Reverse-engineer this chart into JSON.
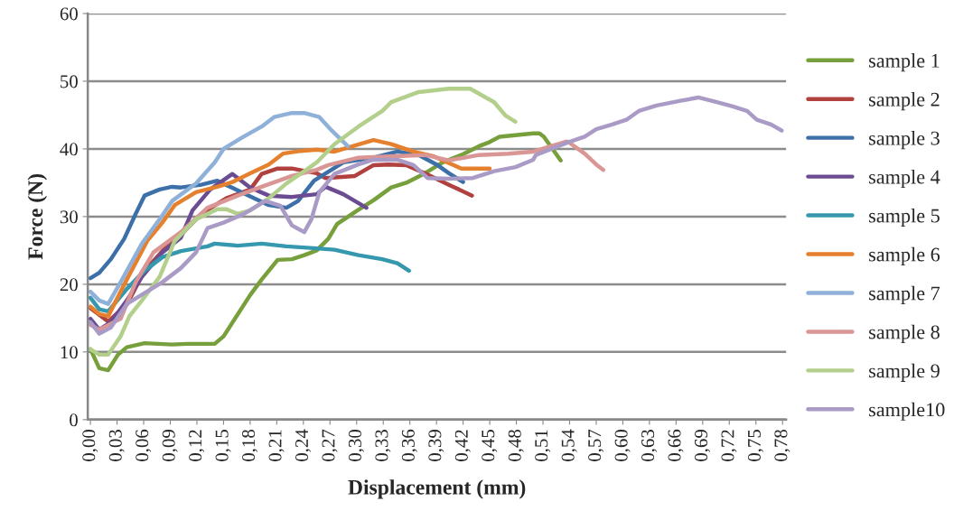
{
  "chart_data": {
    "type": "line",
    "xlabel": "Displacement (mm)",
    "ylabel": "Force (N)",
    "xlim": [
      -0.003,
      0.784
    ],
    "ylim": [
      0,
      60
    ],
    "yticks": [
      0,
      10,
      20,
      30,
      40,
      50,
      60
    ],
    "xticks": [
      {
        "value": 0,
        "label": "0,00"
      },
      {
        "value": 0.03,
        "label": "0,03"
      },
      {
        "value": 0.06,
        "label": "0,06"
      },
      {
        "value": 0.09,
        "label": "0,09"
      },
      {
        "value": 0.12,
        "label": "0,12"
      },
      {
        "value": 0.15,
        "label": "0,15"
      },
      {
        "value": 0.18,
        "label": "0,18"
      },
      {
        "value": 0.21,
        "label": "0,21"
      },
      {
        "value": 0.24,
        "label": "0,24"
      },
      {
        "value": 0.27,
        "label": "0,27"
      },
      {
        "value": 0.3,
        "label": "0,30"
      },
      {
        "value": 0.33,
        "label": "0,33"
      },
      {
        "value": 0.36,
        "label": "0,36"
      },
      {
        "value": 0.39,
        "label": "0,39"
      },
      {
        "value": 0.42,
        "label": "0,42"
      },
      {
        "value": 0.45,
        "label": "0,45"
      },
      {
        "value": 0.48,
        "label": "0,48"
      },
      {
        "value": 0.51,
        "label": "0,51"
      },
      {
        "value": 0.54,
        "label": "0,54"
      },
      {
        "value": 0.57,
        "label": "0,57"
      },
      {
        "value": 0.6,
        "label": "0,60"
      },
      {
        "value": 0.63,
        "label": "0,63"
      },
      {
        "value": 0.66,
        "label": "0,66"
      },
      {
        "value": 0.69,
        "label": "0,69"
      },
      {
        "value": 0.72,
        "label": "0,72"
      },
      {
        "value": 0.75,
        "label": "0,75"
      },
      {
        "value": 0.78,
        "label": "0,78"
      }
    ],
    "grid": "y",
    "legend": "right",
    "marker": "none",
    "line_style": "solid",
    "series": [
      {
        "name": "sample 1",
        "color": "#77a03c",
        "x": [
          0,
          0.01,
          0.02,
          0.031,
          0.041,
          0.061,
          0.092,
          0.109,
          0.14,
          0.15,
          0.18,
          0.193,
          0.211,
          0.227,
          0.241,
          0.255,
          0.268,
          0.278,
          0.302,
          0.319,
          0.339,
          0.356,
          0.377,
          0.397,
          0.418,
          0.438,
          0.448,
          0.461,
          0.499,
          0.506,
          0.511,
          0.53
        ],
        "values": [
          10.4,
          7.6,
          7.3,
          9.6,
          10.7,
          11.3,
          11.1,
          11.2,
          11.2,
          12.3,
          18.4,
          20.7,
          23.6,
          23.7,
          24.3,
          25.0,
          26.7,
          28.9,
          31.0,
          32.4,
          34.3,
          35.0,
          36.4,
          38.0,
          39.1,
          40.4,
          40.9,
          41.8,
          42.3,
          42.3,
          41.8,
          38.3
        ]
      },
      {
        "name": "sample 2",
        "color": "#b0413e",
        "x": [
          0,
          0.02,
          0.041,
          0.061,
          0.092,
          0.102,
          0.125,
          0.153,
          0.18,
          0.193,
          0.211,
          0.227,
          0.255,
          0.265,
          0.298,
          0.319,
          0.336,
          0.356,
          0.377,
          0.404,
          0.43
        ],
        "values": [
          16.5,
          14.5,
          17.0,
          22.0,
          26.5,
          27.3,
          30.4,
          32.7,
          34.0,
          36.3,
          37.1,
          37.1,
          36.4,
          35.7,
          36.0,
          37.6,
          37.7,
          37.6,
          36.4,
          34.7,
          33.1
        ]
      },
      {
        "name": "sample 3",
        "color": "#3d6fa8",
        "x": [
          0,
          0.01,
          0.023,
          0.038,
          0.051,
          0.061,
          0.078,
          0.092,
          0.102,
          0.125,
          0.143,
          0.18,
          0.201,
          0.221,
          0.234,
          0.252,
          0.285,
          0.319,
          0.346,
          0.37,
          0.39,
          0.404,
          0.42
        ],
        "values": [
          20.9,
          21.7,
          23.7,
          26.7,
          30.4,
          33.1,
          34.0,
          34.4,
          34.3,
          34.7,
          35.3,
          33.0,
          31.7,
          31.3,
          32.3,
          35.3,
          38.0,
          38.7,
          39.6,
          39.1,
          37.7,
          36.4,
          35.1
        ]
      },
      {
        "name": "sample 4",
        "color": "#6b4c93",
        "x": [
          0,
          0.01,
          0.023,
          0.041,
          0.058,
          0.081,
          0.102,
          0.115,
          0.135,
          0.16,
          0.18,
          0.201,
          0.227,
          0.255,
          0.265,
          0.285,
          0.311
        ],
        "values": [
          14.9,
          13.3,
          14.4,
          17.6,
          21.1,
          24.7,
          26.9,
          30.9,
          34.0,
          36.3,
          34.3,
          33.1,
          32.9,
          33.3,
          34.4,
          33.3,
          31.3
        ]
      },
      {
        "name": "sample 5",
        "color": "#3598ae",
        "x": [
          0,
          0.01,
          0.02,
          0.041,
          0.061,
          0.081,
          0.102,
          0.132,
          0.14,
          0.166,
          0.193,
          0.221,
          0.255,
          0.275,
          0.302,
          0.329,
          0.346,
          0.359
        ],
        "values": [
          18.0,
          16.3,
          16.0,
          19.3,
          22.0,
          24.0,
          24.9,
          25.6,
          26.0,
          25.7,
          26.0,
          25.6,
          25.3,
          25.1,
          24.3,
          23.7,
          23.1,
          22.0
        ]
      },
      {
        "name": "sample 6",
        "color": "#e5812e",
        "x": [
          0,
          0.01,
          0.02,
          0.041,
          0.064,
          0.081,
          0.095,
          0.119,
          0.143,
          0.16,
          0.18,
          0.201,
          0.217,
          0.237,
          0.255,
          0.275,
          0.319,
          0.339,
          0.364,
          0.387,
          0.418,
          0.45
        ],
        "values": [
          16.7,
          15.6,
          15.3,
          20.7,
          26.4,
          29.1,
          31.7,
          33.6,
          34.4,
          35.1,
          36.4,
          37.7,
          39.3,
          39.7,
          39.9,
          39.6,
          41.3,
          40.7,
          39.6,
          38.9,
          37.1,
          37.1
        ]
      },
      {
        "name": "sample 7",
        "color": "#8fb0d9",
        "x": [
          0,
          0.01,
          0.02,
          0.034,
          0.058,
          0.078,
          0.092,
          0.119,
          0.14,
          0.15,
          0.17,
          0.193,
          0.207,
          0.227,
          0.241,
          0.258,
          0.272,
          0.29
        ],
        "values": [
          18.9,
          17.6,
          17.1,
          20.3,
          26.0,
          29.6,
          32.3,
          34.9,
          38.0,
          40.0,
          41.6,
          43.3,
          44.7,
          45.3,
          45.3,
          44.7,
          42.7,
          40.4
        ]
      },
      {
        "name": "sample 8",
        "color": "#d99694",
        "x": [
          0,
          0.01,
          0.034,
          0.051,
          0.071,
          0.102,
          0.132,
          0.166,
          0.193,
          0.227,
          0.255,
          0.268,
          0.302,
          0.336,
          0.377,
          0.404,
          0.438,
          0.471,
          0.499,
          0.537,
          0.54,
          0.557,
          0.57,
          0.578
        ],
        "values": [
          14.0,
          13.3,
          14.9,
          20.3,
          24.7,
          27.7,
          31.3,
          33.1,
          34.4,
          36.0,
          36.9,
          37.6,
          38.7,
          38.9,
          39.1,
          38.3,
          39.1,
          39.3,
          39.6,
          41.1,
          40.9,
          39.3,
          37.7,
          36.9
        ]
      },
      {
        "name": "sample 9",
        "color": "#b3cf8c",
        "x": [
          0,
          0.01,
          0.02,
          0.034,
          0.044,
          0.058,
          0.078,
          0.095,
          0.119,
          0.143,
          0.153,
          0.166,
          0.18,
          0.201,
          0.221,
          0.241,
          0.255,
          0.275,
          0.302,
          0.329,
          0.339,
          0.37,
          0.404,
          0.428,
          0.455,
          0.468,
          0.479
        ],
        "values": [
          10.4,
          9.6,
          9.6,
          12.3,
          15.3,
          17.6,
          21.1,
          26.4,
          29.6,
          31.1,
          31.1,
          30.4,
          30.9,
          32.7,
          34.9,
          36.7,
          38.0,
          40.7,
          43.3,
          45.6,
          46.9,
          48.4,
          48.9,
          48.9,
          46.9,
          44.9,
          44.0
        ]
      },
      {
        "name": "sample10",
        "color": "#a99bc6",
        "x": [
          0,
          0.01,
          0.023,
          0.041,
          0.081,
          0.102,
          0.119,
          0.132,
          0.15,
          0.173,
          0.197,
          0.214,
          0.227,
          0.241,
          0.249,
          0.258,
          0.275,
          0.302,
          0.319,
          0.346,
          0.364,
          0.38,
          0.404,
          0.431,
          0.455,
          0.479,
          0.499,
          0.502,
          0.537,
          0.557,
          0.57,
          0.588,
          0.604,
          0.618,
          0.638,
          0.665,
          0.685,
          0.706,
          0.723,
          0.74,
          0.751,
          0.767,
          0.779
        ],
        "values": [
          14.4,
          12.7,
          13.6,
          17.1,
          20.3,
          22.4,
          24.7,
          28.3,
          29.1,
          30.4,
          32.3,
          31.6,
          28.7,
          27.7,
          29.6,
          33.6,
          36.3,
          37.7,
          38.4,
          38.4,
          37.6,
          35.7,
          35.6,
          35.7,
          36.7,
          37.3,
          38.4,
          39.1,
          40.9,
          41.8,
          42.9,
          43.6,
          44.3,
          45.6,
          46.4,
          47.1,
          47.6,
          46.9,
          46.3,
          45.6,
          44.3,
          43.6,
          42.7
        ]
      }
    ]
  }
}
